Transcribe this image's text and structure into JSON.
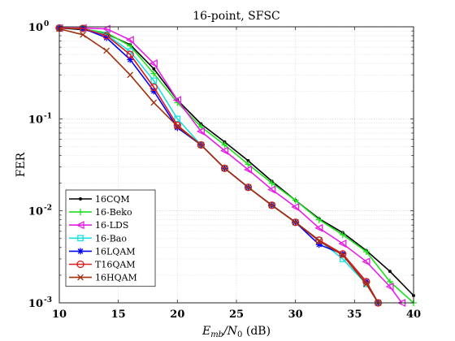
{
  "chart_data": {
    "type": "line",
    "title": "16-point, SFSC",
    "xlabel_main": "E",
    "xlabel_sub": "mb",
    "xlabel_rest": "/N",
    "xlabel_sub0": "0",
    "xlabel_unit": " (dB)",
    "ylabel": "FER",
    "x_scale": "linear",
    "y_scale": "log",
    "xlim": [
      10,
      40
    ],
    "ylim": [
      0.001,
      1
    ],
    "xticks": [
      10,
      15,
      20,
      25,
      30,
      35,
      40
    ],
    "xtick_labels": [
      "10",
      "15",
      "20",
      "25",
      "30",
      "35",
      "40"
    ],
    "yticks": [
      1,
      0.1,
      0.01,
      0.001
    ],
    "ytick_base": "10",
    "ytick_exponents": [
      "0",
      "-1",
      "-2",
      "-3"
    ],
    "grid": true,
    "minor_grid": true,
    "legend_position": "bottom-left",
    "series": [
      {
        "name": "16CQM",
        "color": "#000000",
        "marker": "point",
        "x": [
          10,
          12,
          14,
          16,
          18,
          20,
          22,
          24,
          26,
          28,
          30,
          32,
          34,
          36,
          38,
          40
        ],
        "y": [
          0.97,
          0.93,
          0.84,
          0.64,
          0.35,
          0.16,
          0.088,
          0.056,
          0.035,
          0.021,
          0.013,
          0.0082,
          0.0058,
          0.0037,
          0.0022,
          0.0012
        ]
      },
      {
        "name": "16-Beko",
        "color": "#1fe01f",
        "marker": "plus",
        "x": [
          10,
          12,
          14,
          16,
          18,
          20,
          22,
          24,
          26,
          28,
          30,
          32,
          34,
          36,
          38,
          40
        ],
        "y": [
          0.97,
          0.95,
          0.86,
          0.62,
          0.31,
          0.15,
          0.082,
          0.052,
          0.032,
          0.02,
          0.013,
          0.008,
          0.0055,
          0.0036,
          0.0017,
          0.001
        ]
      },
      {
        "name": "16-LDS",
        "color": "#e61ee6",
        "marker": "triangle-left",
        "x": [
          10,
          12,
          14,
          16,
          18,
          20,
          22,
          24,
          26,
          28,
          30,
          32,
          34,
          36,
          38,
          39
        ],
        "y": [
          0.97,
          0.97,
          0.95,
          0.72,
          0.4,
          0.16,
          0.073,
          0.045,
          0.028,
          0.017,
          0.011,
          0.0065,
          0.0044,
          0.0028,
          0.0015,
          0.001
        ]
      },
      {
        "name": "16-Bao",
        "color": "#18e0e0",
        "marker": "square",
        "x": [
          10,
          12,
          14,
          16,
          18,
          20,
          22,
          24,
          26,
          28,
          30,
          32,
          34,
          36,
          37
        ],
        "y": [
          0.97,
          0.96,
          0.82,
          0.54,
          0.26,
          0.1,
          0.052,
          0.029,
          0.018,
          0.0115,
          0.0075,
          0.0048,
          0.003,
          0.0016,
          0.001
        ]
      },
      {
        "name": "16LQAM",
        "color": "#0000ff",
        "marker": "asterisk",
        "x": [
          10,
          12,
          14,
          16,
          18,
          20,
          22,
          24,
          26,
          28,
          30,
          32,
          34,
          36,
          37
        ],
        "y": [
          0.97,
          0.96,
          0.76,
          0.44,
          0.2,
          0.08,
          0.052,
          0.029,
          0.018,
          0.0115,
          0.0075,
          0.0043,
          0.0034,
          0.0017,
          0.001
        ]
      },
      {
        "name": "T16QAM",
        "color": "#e01b1b",
        "marker": "circle",
        "x": [
          10,
          12,
          14,
          16,
          18,
          20,
          22,
          24,
          26,
          28,
          30,
          32,
          34,
          36,
          37
        ],
        "y": [
          0.97,
          0.96,
          0.8,
          0.5,
          0.22,
          0.085,
          0.052,
          0.029,
          0.018,
          0.0115,
          0.0075,
          0.0048,
          0.0034,
          0.0017,
          0.001
        ]
      },
      {
        "name": "16HQAM",
        "color": "#a0300f",
        "marker": "x",
        "x": [
          10,
          12,
          14,
          16,
          18,
          20,
          22,
          24,
          26,
          28,
          30,
          32,
          34,
          36,
          37
        ],
        "y": [
          0.95,
          0.82,
          0.55,
          0.3,
          0.15,
          0.083,
          0.052,
          0.029,
          0.018,
          0.0115,
          0.0075,
          0.0047,
          0.0033,
          0.0016,
          0.001
        ]
      }
    ]
  }
}
